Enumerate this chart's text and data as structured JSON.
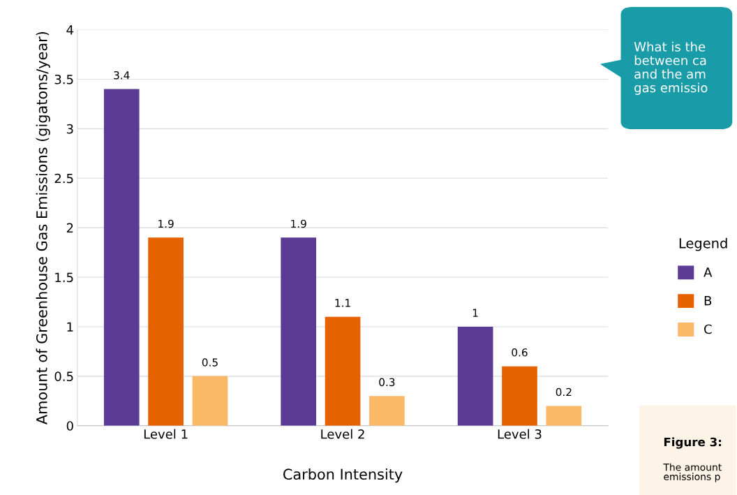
{
  "chart_data": {
    "type": "bar",
    "xlabel": "Carbon Intensity",
    "ylabel": "Amount of Greenhouse Gas Emissions (gigatons/year)",
    "categories": [
      "Level 1",
      "Level 2",
      "Level 3"
    ],
    "series": [
      {
        "name": "A",
        "color": "#5c3b96",
        "values": [
          3.4,
          1.9,
          1
        ]
      },
      {
        "name": "B",
        "color": "#e66100",
        "values": [
          1.9,
          1.1,
          0.6
        ]
      },
      {
        "name": "C",
        "color": "#fbb867",
        "values": [
          0.5,
          0.3,
          0.2
        ]
      }
    ],
    "ylim": [
      0,
      4
    ],
    "yticks": [
      0,
      0.5,
      1,
      1.5,
      2,
      2.5,
      3,
      3.5,
      4
    ],
    "grid": "y",
    "data_labels": true,
    "legend": "right",
    "legend_title": "Legend",
    "annotations": [
      "What is the\nbetween ca\nand the am\ngas emissio",
      "Figure 3:",
      "The amount\nemissions p"
    ]
  }
}
